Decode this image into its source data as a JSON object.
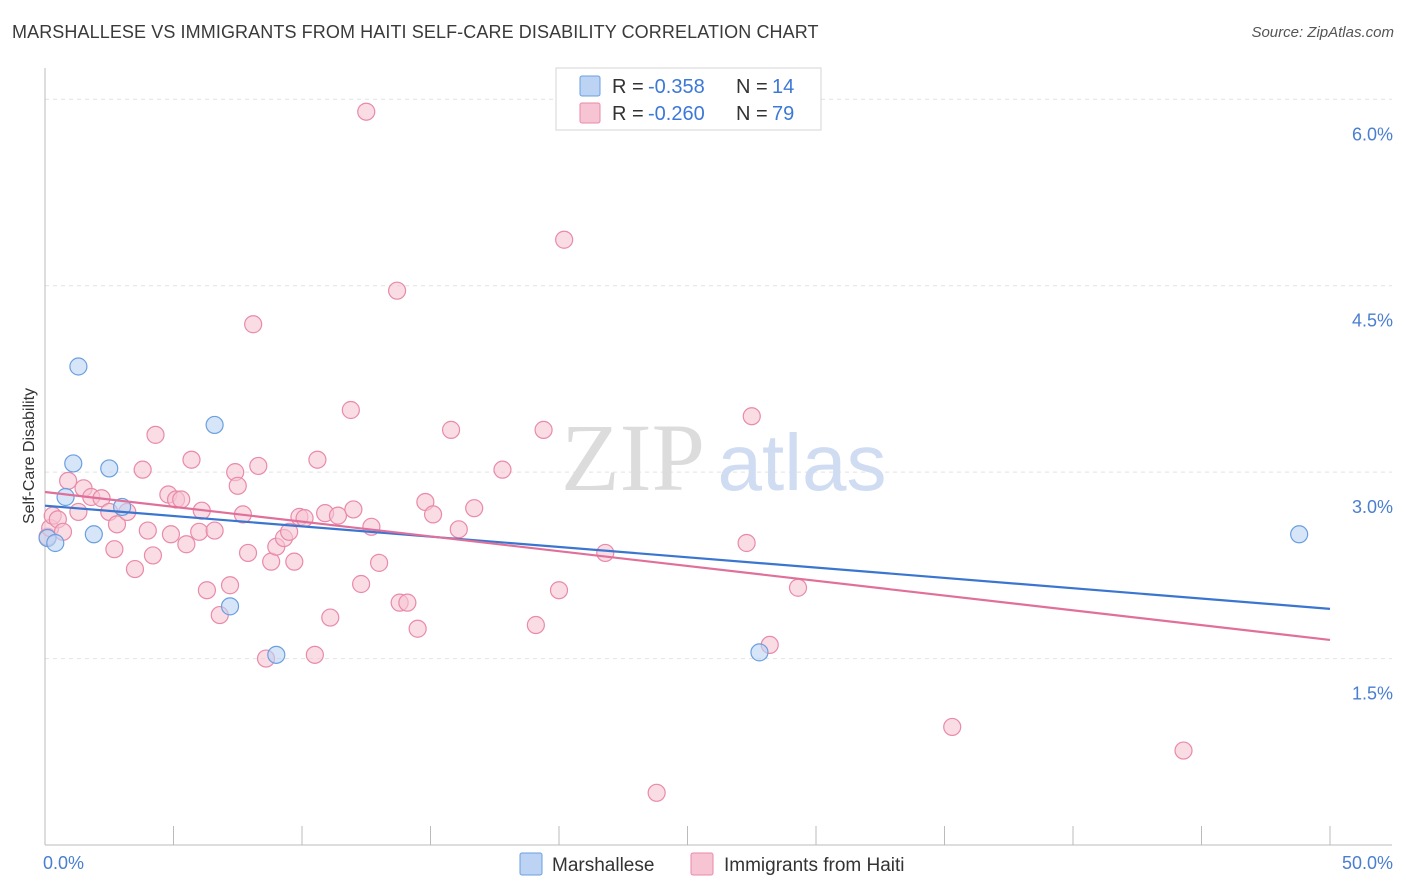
{
  "title": "MARSHALLESE VS IMMIGRANTS FROM HAITI SELF-CARE DISABILITY CORRELATION CHART",
  "source": "Source: ZipAtlas.com",
  "watermark": {
    "zip": "ZIP",
    "atlas": "atlas"
  },
  "colors": {
    "blue": "#6a9fe0",
    "blue_fill": "#bcd3f3",
    "blue_line": "#3a76d0",
    "pink": "#e98aa9",
    "pink_fill": "#f7c4d4",
    "pink_line": "#e0709a",
    "tick": "#4a7ed0"
  },
  "chart_data": {
    "type": "scatter",
    "title": "MARSHALLESE VS IMMIGRANTS FROM HAITI SELF-CARE DISABILITY CORRELATION CHART",
    "xlabel": "",
    "ylabel": "Self-Care Disability",
    "xlim": [
      0,
      50
    ],
    "ylim": [
      0,
      6.3
    ],
    "x_tick_labels": [
      "0.0%",
      "50.0%"
    ],
    "y_ticks": [
      1.5,
      3.0,
      4.5,
      6.0
    ],
    "y_tick_labels": [
      "1.5%",
      "3.0%",
      "4.5%",
      "6.0%"
    ],
    "grid": true,
    "legend_placement": "top-center",
    "legend": [
      {
        "name": "Marshallese",
        "r_label": "R =",
        "r": "-0.358",
        "n_label": "N =",
        "n": "14"
      },
      {
        "name": "Immigrants from Haiti",
        "r_label": "R =",
        "r": "-0.260",
        "n_label": "N =",
        "n": "79"
      }
    ],
    "series": [
      {
        "name": "Marshallese",
        "color": "blue",
        "points": [
          [
            0.1,
            2.47
          ],
          [
            0.4,
            2.43
          ],
          [
            0.8,
            2.8
          ],
          [
            1.1,
            3.07
          ],
          [
            1.3,
            3.85
          ],
          [
            1.9,
            2.5
          ],
          [
            2.5,
            3.03
          ],
          [
            3.0,
            2.72
          ],
          [
            6.6,
            3.38
          ],
          [
            7.2,
            1.92
          ],
          [
            9.0,
            1.53
          ],
          [
            27.8,
            1.55
          ],
          [
            48.8,
            2.5
          ]
        ],
        "trend": [
          [
            0,
            2.73
          ],
          [
            50,
            1.9
          ]
        ]
      },
      {
        "name": "Immigrants from Haiti",
        "color": "pink",
        "points": [
          [
            0.1,
            2.48
          ],
          [
            0.2,
            2.55
          ],
          [
            0.3,
            2.65
          ],
          [
            0.5,
            2.62
          ],
          [
            0.7,
            2.52
          ],
          [
            0.9,
            2.93
          ],
          [
            1.3,
            2.68
          ],
          [
            1.5,
            2.87
          ],
          [
            1.8,
            2.8
          ],
          [
            2.2,
            2.79
          ],
          [
            2.5,
            2.68
          ],
          [
            2.7,
            2.38
          ],
          [
            2.8,
            2.58
          ],
          [
            3.2,
            2.68
          ],
          [
            3.5,
            2.22
          ],
          [
            3.8,
            3.02
          ],
          [
            4.0,
            2.53
          ],
          [
            4.2,
            2.33
          ],
          [
            4.3,
            3.3
          ],
          [
            4.8,
            2.82
          ],
          [
            4.9,
            2.5
          ],
          [
            5.1,
            2.78
          ],
          [
            5.3,
            2.78
          ],
          [
            5.5,
            2.42
          ],
          [
            5.7,
            3.1
          ],
          [
            6.0,
            2.52
          ],
          [
            6.1,
            2.69
          ],
          [
            6.3,
            2.05
          ],
          [
            6.6,
            2.53
          ],
          [
            6.8,
            1.85
          ],
          [
            7.2,
            2.09
          ],
          [
            7.4,
            3.0
          ],
          [
            7.5,
            2.89
          ],
          [
            7.7,
            2.66
          ],
          [
            7.9,
            2.35
          ],
          [
            8.1,
            4.19
          ],
          [
            8.3,
            3.05
          ],
          [
            8.6,
            1.5
          ],
          [
            8.8,
            2.28
          ],
          [
            9.0,
            2.4
          ],
          [
            9.3,
            2.47
          ],
          [
            9.5,
            2.52
          ],
          [
            9.7,
            2.28
          ],
          [
            9.9,
            2.64
          ],
          [
            10.1,
            2.63
          ],
          [
            10.5,
            1.53
          ],
          [
            10.6,
            3.1
          ],
          [
            10.9,
            2.67
          ],
          [
            11.1,
            1.83
          ],
          [
            11.4,
            2.65
          ],
          [
            11.9,
            3.5
          ],
          [
            12.0,
            2.7
          ],
          [
            12.3,
            2.1
          ],
          [
            12.5,
            5.9
          ],
          [
            12.7,
            2.56
          ],
          [
            13.0,
            2.27
          ],
          [
            13.7,
            4.46
          ],
          [
            13.8,
            1.95
          ],
          [
            14.1,
            1.95
          ],
          [
            14.5,
            1.74
          ],
          [
            14.8,
            2.76
          ],
          [
            15.1,
            2.66
          ],
          [
            15.8,
            3.34
          ],
          [
            16.1,
            2.54
          ],
          [
            16.7,
            2.71
          ],
          [
            17.8,
            3.02
          ],
          [
            19.1,
            1.77
          ],
          [
            19.4,
            3.34
          ],
          [
            20.0,
            2.05
          ],
          [
            20.2,
            4.87
          ],
          [
            21.8,
            2.35
          ],
          [
            23.8,
            0.42
          ],
          [
            27.3,
            2.43
          ],
          [
            27.5,
            3.45
          ],
          [
            28.2,
            1.61
          ],
          [
            29.3,
            2.07
          ],
          [
            35.3,
            0.95
          ],
          [
            44.3,
            0.76
          ]
        ],
        "trend": [
          [
            0,
            2.84
          ],
          [
            50,
            1.65
          ]
        ]
      }
    ]
  }
}
